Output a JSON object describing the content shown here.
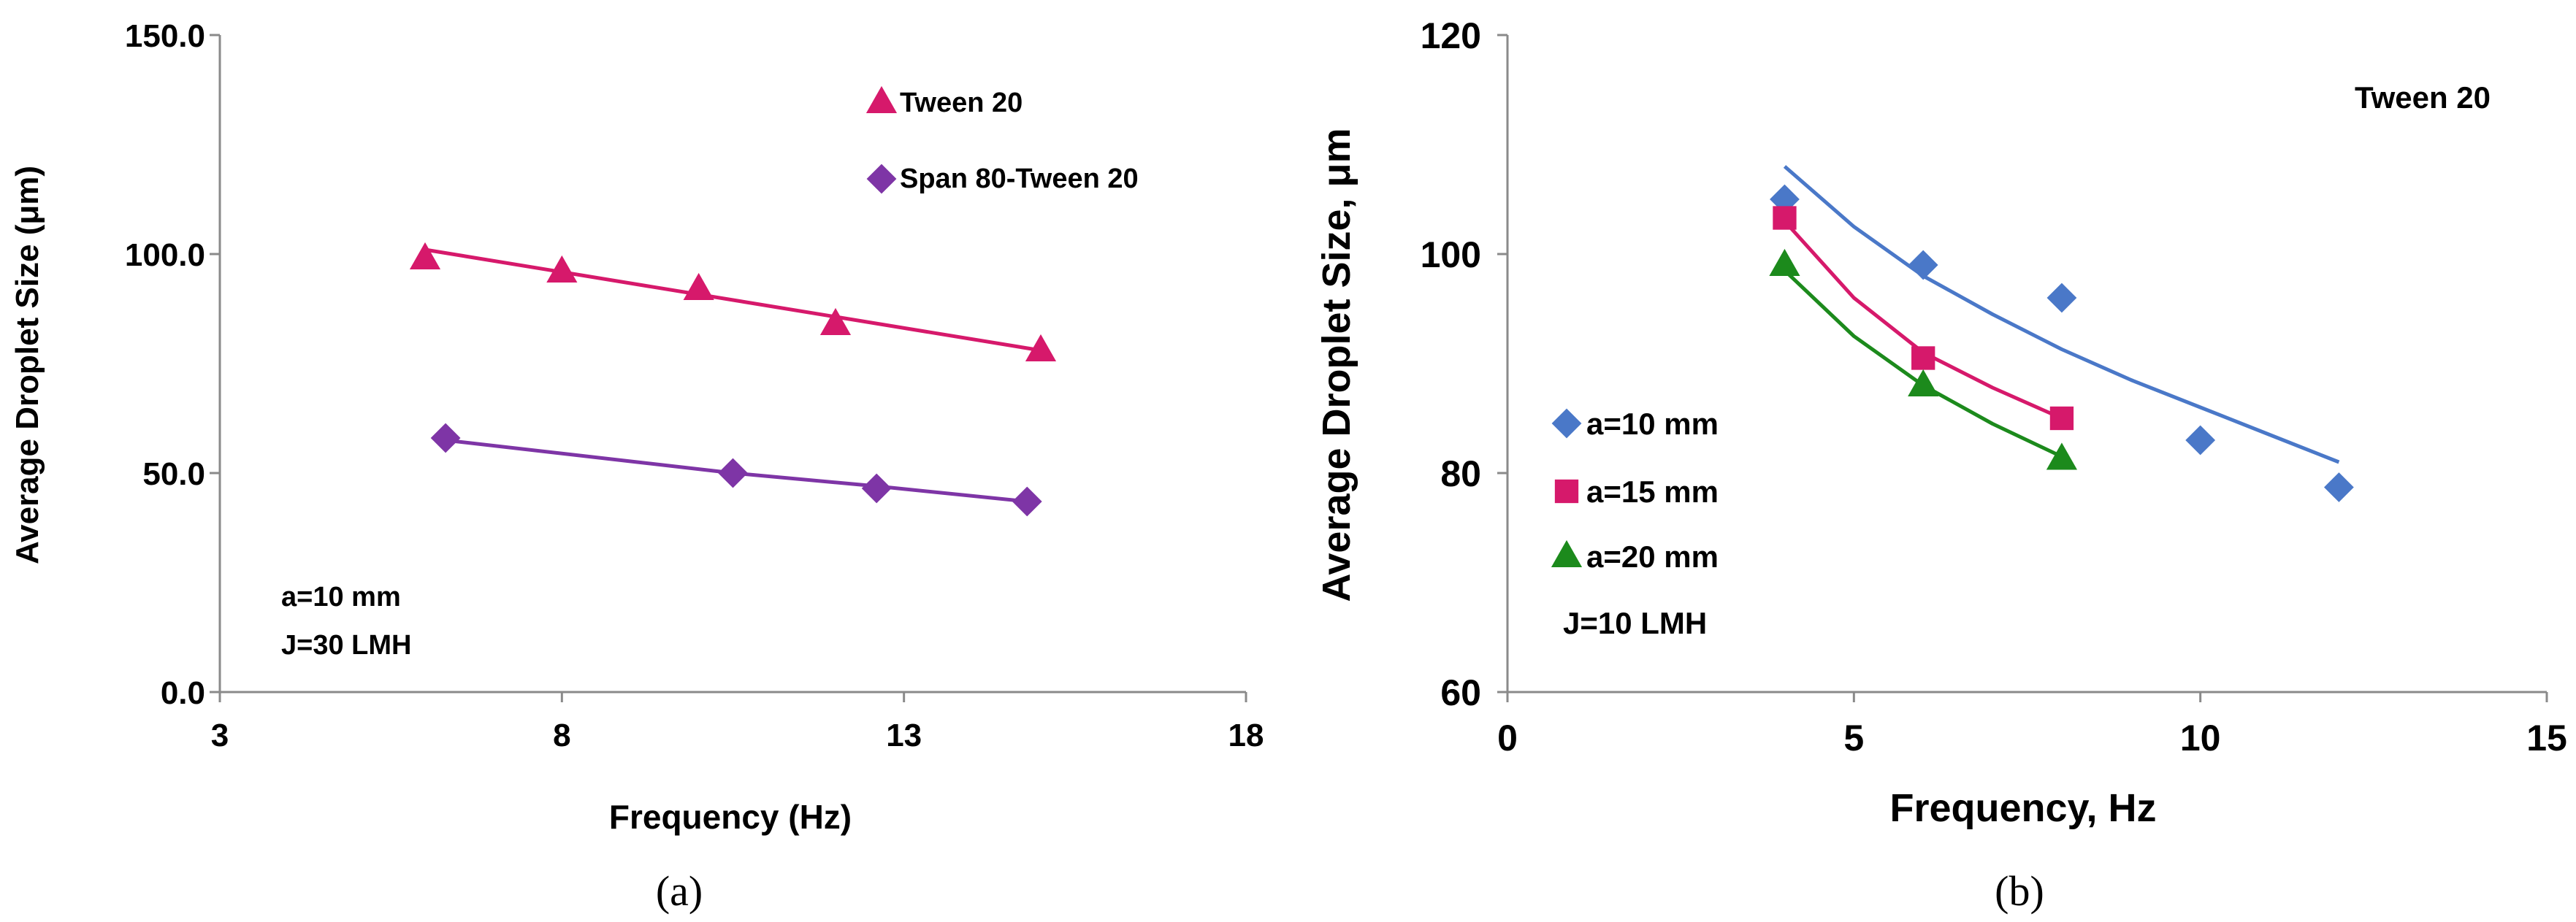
{
  "colors": {
    "tween": "#D6196B",
    "span": "#7E35A6",
    "blue": "#4A78C8",
    "magenta": "#D6196B",
    "green": "#1C8A1C"
  },
  "chart_data": [
    {
      "type": "scatter",
      "panel": "a",
      "caption": "(a)",
      "xlabel": "Frequency (Hz)",
      "ylabel": "Average Droplet Size (μm)",
      "xlim": [
        3,
        18
      ],
      "ylim": [
        0,
        150
      ],
      "xticks": [
        3,
        8,
        13,
        18
      ],
      "xtick_labels": [
        "3",
        "8",
        "13",
        "18"
      ],
      "yticks": [
        0,
        50,
        100,
        150
      ],
      "ytick_labels": [
        "0.0",
        "50.0",
        "100.0",
        "150.0"
      ],
      "legend_position": "top-right",
      "annotations": [
        "a=10 mm",
        "J=30 LMH"
      ],
      "series": [
        {
          "name": "Tween 20",
          "marker": "triangle",
          "color_key": "tween",
          "x": [
            6,
            8,
            10,
            12,
            15
          ],
          "y": [
            99,
            96,
            92,
            84,
            78
          ],
          "fit": "linear",
          "fit_line": [
            [
              6,
              101
            ],
            [
              15,
              78
            ]
          ]
        },
        {
          "name": "Span 80-Tween 20",
          "marker": "diamond",
          "color_key": "span",
          "x": [
            6.3,
            10.5,
            12.6,
            14.8
          ],
          "y": [
            58,
            50,
            46.5,
            43.5
          ],
          "fit": "linear",
          "fit_line": [
            [
              6.3,
              57.5
            ],
            [
              10.5,
              50
            ],
            [
              12.6,
              47
            ],
            [
              14.8,
              43.5
            ]
          ]
        }
      ]
    },
    {
      "type": "scatter",
      "panel": "b",
      "caption": "(b)",
      "title": "Tween 20",
      "xlabel": "Frequency, Hz",
      "ylabel": "Average Droplet Size, μm",
      "xlim": [
        0,
        15
      ],
      "ylim": [
        60,
        120
      ],
      "xticks": [
        0,
        5,
        10,
        15
      ],
      "xtick_labels": [
        "0",
        "5",
        "10",
        "15"
      ],
      "yticks": [
        60,
        80,
        100,
        120
      ],
      "ytick_labels": [
        "60",
        "80",
        "100",
        "120"
      ],
      "legend_position": "bottom-left",
      "annotations": [
        "J=10 LMH"
      ],
      "series": [
        {
          "name": "a=10 mm",
          "marker": "diamond",
          "color_key": "blue",
          "x": [
            4,
            6,
            8,
            10,
            12
          ],
          "y": [
            105,
            99,
            96,
            83,
            78.7
          ],
          "fit": "power",
          "fit_line": [
            [
              4,
              108
            ],
            [
              5,
              102.5
            ],
            [
              6,
              98
            ],
            [
              7,
              94.5
            ],
            [
              8,
              91.3
            ],
            [
              9,
              88.5
            ],
            [
              10,
              86
            ],
            [
              11,
              83.5
            ],
            [
              12,
              81
            ]
          ]
        },
        {
          "name": "a=15 mm",
          "marker": "square",
          "color_key": "magenta",
          "x": [
            4,
            6,
            8
          ],
          "y": [
            103.3,
            90.5,
            85
          ],
          "fit": "power",
          "fit_line": [
            [
              4,
              103
            ],
            [
              5,
              96
            ],
            [
              6,
              91
            ],
            [
              7,
              87.8
            ],
            [
              8,
              85
            ]
          ]
        },
        {
          "name": "a=20 mm",
          "marker": "triangle",
          "color_key": "green",
          "x": [
            4,
            6,
            8
          ],
          "y": [
            99,
            88,
            81.3
          ],
          "fit": "power",
          "fit_line": [
            [
              4,
              98.5
            ],
            [
              5,
              92.5
            ],
            [
              6,
              88
            ],
            [
              7,
              84.5
            ],
            [
              8,
              81.5
            ]
          ]
        }
      ]
    }
  ]
}
